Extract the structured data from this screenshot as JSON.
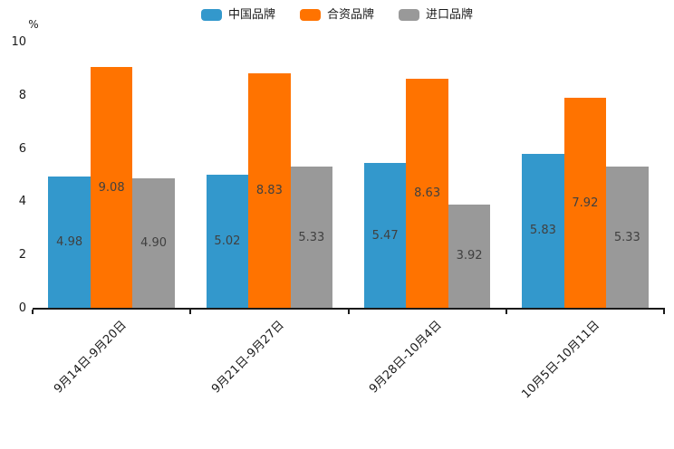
{
  "chart_data": {
    "type": "bar",
    "categories": [
      "9月14日-9月20日",
      "9月21日-9月27日",
      "9月28日-10月4日",
      "10月5日-10月11日"
    ],
    "series": [
      {
        "name": "中国品牌",
        "color": "#3398CC",
        "values": [
          4.98,
          5.02,
          5.47,
          5.83
        ]
      },
      {
        "name": "合资品牌",
        "color": "#FF7300",
        "values": [
          9.08,
          8.83,
          8.63,
          7.92
        ]
      },
      {
        "name": "进口品牌",
        "color": "#999999",
        "values": [
          4.9,
          5.33,
          3.92,
          5.33
        ]
      }
    ],
    "title": "",
    "xlabel": "",
    "ylabel": "%",
    "ylim": [
      0,
      10
    ],
    "yticks": [
      0,
      2,
      4,
      6,
      8,
      10
    ],
    "grid": false,
    "legend_position": "top-center",
    "bar_label_decimals": 2,
    "colors": {
      "axis": "#1a1a1a",
      "bar_label": "#404040",
      "tick_label": "#1a1a1a"
    }
  }
}
